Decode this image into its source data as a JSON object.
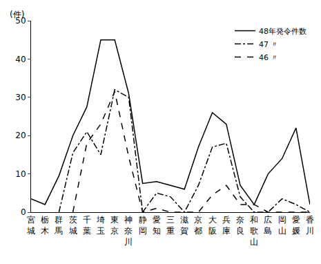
{
  "chart_data": {
    "type": "line",
    "y_label": "(件)",
    "categories": [
      "宮城",
      "栃木",
      "群馬",
      "茨城",
      "千葉",
      "埼玉",
      "東京",
      "神奈川",
      "静岡",
      "愛知",
      "三重",
      "滋賀",
      "京都",
      "大阪",
      "兵庫",
      "奈良",
      "和歌山",
      "広島",
      "岡山",
      "愛媛",
      "香川"
    ],
    "series": [
      {
        "name": "48年発令件数",
        "color": "#000000",
        "line_style": "solid",
        "values": [
          3.5,
          2,
          9.5,
          20,
          27.5,
          45,
          45,
          31,
          7.5,
          8,
          7,
          6,
          17,
          26,
          23,
          7,
          2,
          10,
          14,
          22,
          2
        ]
      },
      {
        "name": "47 〃",
        "color": "#000000",
        "line_style": "dashdot",
        "values": [
          null,
          null,
          0,
          15.5,
          21,
          15,
          32,
          30,
          0,
          5,
          4,
          0,
          7,
          17,
          18,
          4,
          0,
          0,
          3.5,
          2,
          0
        ]
      },
      {
        "name": "46 〃",
        "color": "#000000",
        "line_style": "dash",
        "values": [
          null,
          null,
          null,
          0,
          18,
          23,
          31.5,
          14.5,
          0,
          1,
          0,
          0,
          0,
          4.5,
          7,
          2,
          2,
          0,
          0,
          0,
          0
        ]
      }
    ],
    "ylim": [
      0,
      50
    ],
    "yticks": [
      0,
      10,
      20,
      30,
      40,
      50
    ],
    "grid": false,
    "legend": "top right"
  }
}
